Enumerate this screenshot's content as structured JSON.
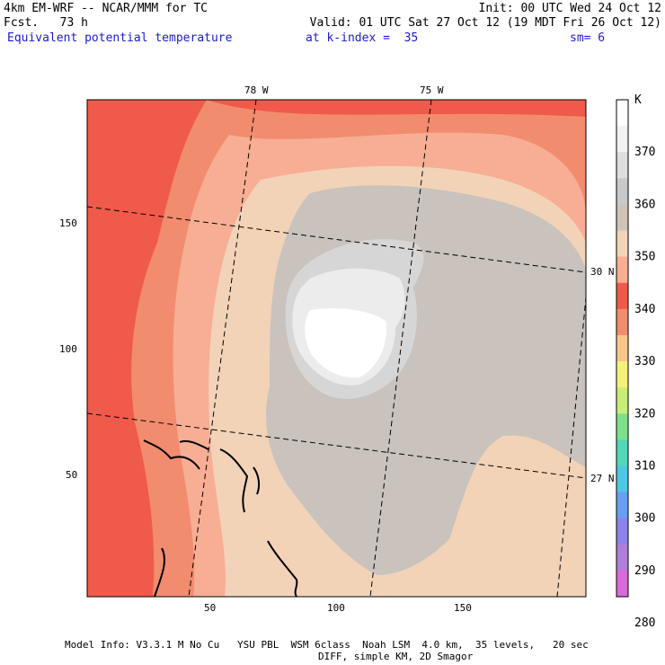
{
  "header": {
    "title": "4km EM-WRF -- NCAR/MMM for TC",
    "fcst": "Fcst.   73 h",
    "init": "Init: 00 UTC Wed 24 Oct 12",
    "valid": "Valid: 01 UTC Sat 27 Oct 12 (19 MDT Fri 26 Oct 12)",
    "field": "Equivalent potential temperature",
    "kindex": "at k-index =  35",
    "sm": "sm= 6"
  },
  "map": {
    "lon_labels": [
      "78 W",
      "75 W"
    ],
    "lat_labels": [
      "30 N",
      "27 N"
    ],
    "y_ticks": [
      "150",
      "100",
      "50"
    ],
    "x_ticks": [
      "50",
      "100",
      "150"
    ]
  },
  "colorbar": {
    "unit": "K",
    "labels": [
      "370",
      "360",
      "350",
      "340",
      "330",
      "320",
      "310",
      "300",
      "290",
      "280"
    ],
    "colors": [
      "#ffffff",
      "#f2f2f2",
      "#dedede",
      "#c9c9c9",
      "#cfc3b8",
      "#f2d3b8",
      "#f7ae94",
      "#f05a4a",
      "#f28c6e",
      "#f7c68c",
      "#f5f07a",
      "#c8ee78",
      "#7ee08c",
      "#50d8b8",
      "#4ec8e0",
      "#6a9ef0",
      "#8c82e8",
      "#b07ed8",
      "#d86ad8"
    ]
  },
  "footer": {
    "line1": "Model Info: V3.3.1 M No Cu   YSU PBL  WSM 6class  Noah LSM  4.0 km,  35 levels,   20 sec",
    "line2": "DIFF, simple KM, 2D Smagor"
  }
}
